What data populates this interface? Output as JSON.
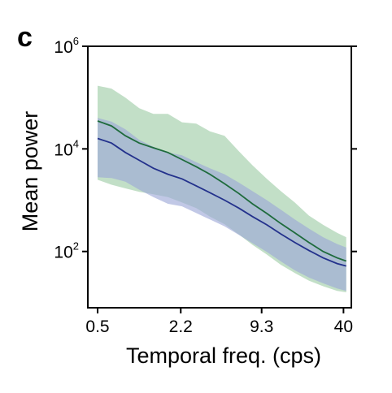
{
  "panel_label": "c",
  "colors": {
    "green_band": "#b7d9bd",
    "blue_band": "#9ba6d6",
    "green_line": "#1e6b3c",
    "blue_line": "#23318c",
    "frame": "#000000"
  },
  "chart_data": {
    "type": "area",
    "xlabel": "Temporal freq. (cps)",
    "ylabel": "Mean power",
    "xscale": "log",
    "yscale": "log",
    "xlim": [
      0.42,
      46
    ],
    "ylim": [
      8,
      1000000
    ],
    "x_ticks": [
      {
        "value": 0.5,
        "label": "0.5"
      },
      {
        "value": 2.2,
        "label": "2.2"
      },
      {
        "value": 9.3,
        "label": "9.3"
      },
      {
        "value": 40,
        "label": "40"
      }
    ],
    "y_ticks": [
      {
        "value": 100,
        "base": "10",
        "exp": "2"
      },
      {
        "value": 10000,
        "base": "10",
        "exp": "4"
      },
      {
        "value": 1000000,
        "base": "10",
        "exp": "6"
      }
    ],
    "grid": false,
    "legend": "none",
    "x": [
      0.5,
      0.64,
      0.82,
      1.05,
      1.35,
      1.75,
      2.25,
      2.9,
      3.7,
      4.8,
      6.2,
      7.9,
      10.2,
      13.1,
      16.8,
      21.6,
      27.8,
      35.7,
      42
    ],
    "series": [
      {
        "color_key": "green",
        "mean": [
          35000,
          28000,
          18000,
          13000,
          10500,
          8500,
          6200,
          4500,
          3200,
          2100,
          1350,
          850,
          550,
          350,
          230,
          150,
          100,
          75,
          65
        ],
        "upper": [
          170000,
          150000,
          100000,
          62000,
          48000,
          48000,
          33000,
          31000,
          22000,
          18000,
          9000,
          4800,
          2600,
          1500,
          900,
          500,
          330,
          230,
          190
        ],
        "lower": [
          2500,
          2000,
          1700,
          1450,
          1300,
          1150,
          900,
          700,
          480,
          340,
          215,
          135,
          87,
          55,
          38,
          27,
          21,
          17,
          16
        ]
      },
      {
        "color_key": "blue",
        "mean": [
          16000,
          13000,
          8500,
          6000,
          4200,
          3200,
          2600,
          1900,
          1400,
          1000,
          700,
          480,
          330,
          220,
          150,
          105,
          75,
          58,
          52
        ],
        "upper": [
          40000,
          34000,
          24000,
          15000,
          11000,
          8500,
          7500,
          5500,
          4200,
          3200,
          2200,
          1500,
          1000,
          650,
          420,
          280,
          190,
          140,
          120
        ],
        "lower": [
          2800,
          2700,
          2300,
          1600,
          1150,
          850,
          760,
          560,
          420,
          310,
          210,
          145,
          98,
          64,
          43,
          31,
          24,
          19,
          17
        ]
      }
    ]
  }
}
